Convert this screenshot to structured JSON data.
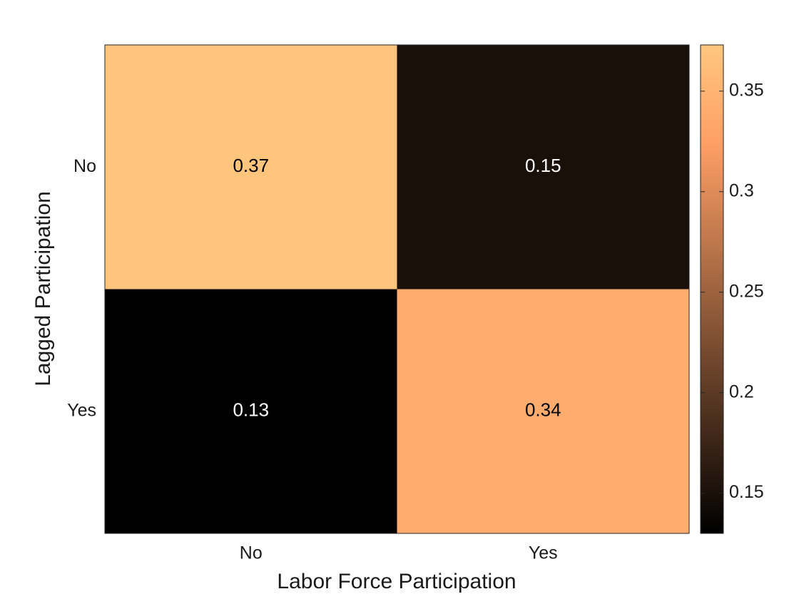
{
  "chart_data": {
    "type": "heatmap",
    "x_categories": [
      "No",
      "Yes"
    ],
    "y_categories": [
      "No",
      "Yes"
    ],
    "values": [
      [
        0.37,
        0.15
      ],
      [
        0.13,
        0.34
      ]
    ],
    "xlabel": "Labor Force Participation",
    "ylabel": "Lagged Participation",
    "colormap": "copper",
    "clim": [
      0.13,
      0.373
    ],
    "cticks": [
      0.15,
      0.2,
      0.25,
      0.3,
      0.35
    ]
  }
}
